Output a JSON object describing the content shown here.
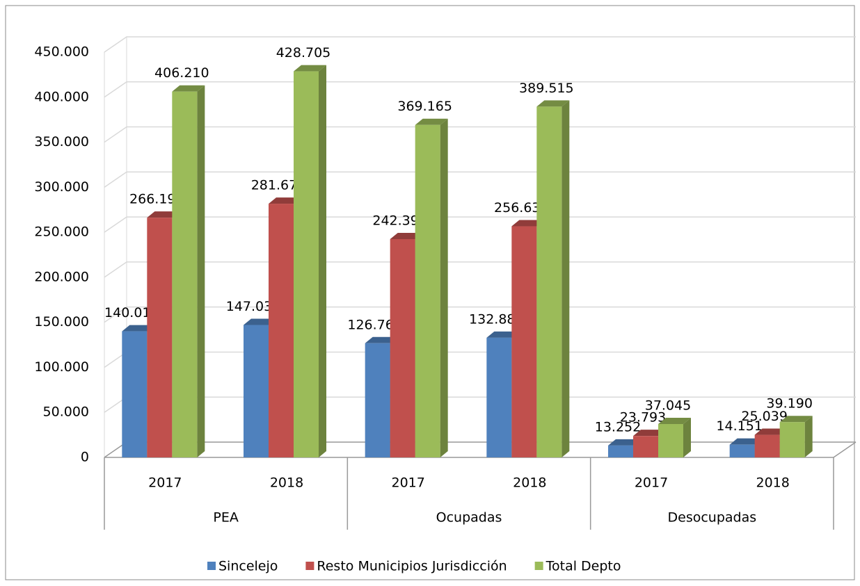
{
  "chart_data": {
    "type": "bar",
    "categories": [
      "2017",
      "2018",
      "2017",
      "2018",
      "2017",
      "2018"
    ],
    "groups": [
      "PEA",
      "Ocupadas",
      "Desocupadas"
    ],
    "series": [
      {
        "name": "Sincelejo",
        "color": "#4f81bd",
        "values": [
          140018,
          147035,
          126766,
          132883,
          13252,
          14151
        ],
        "value_labels": [
          "140.018",
          "147.035",
          "126.766",
          "132.883",
          "13.252",
          "14.151"
        ]
      },
      {
        "name": "Resto Municipios Jurisdicción",
        "color": "#c0504d",
        "values": [
          266192,
          281670,
          242399,
          256632,
          23793,
          25039
        ],
        "value_labels": [
          "266.192",
          "281.670",
          "242.399",
          "256.632",
          "23.793",
          "25.039"
        ]
      },
      {
        "name": "Total Depto",
        "color": "#9bbb59",
        "values": [
          406210,
          428705,
          369165,
          389515,
          37045,
          39190
        ],
        "value_labels": [
          "406.210",
          "428.705",
          "369.165",
          "389.515",
          "37.045",
          "39.190"
        ]
      }
    ],
    "ylim": [
      0,
      450000
    ],
    "yticks": [
      0,
      {
        "value": 50000,
        "label": "50.000"
      },
      {
        "value": 100000,
        "label": "100.000"
      },
      {
        "value": 150000,
        "label": "150.000"
      },
      {
        "value": 200000,
        "label": "200.000"
      },
      {
        "value": 250000,
        "label": "250.000"
      },
      {
        "value": 300000,
        "label": "300.000"
      },
      {
        "value": 350000,
        "label": "350.000"
      },
      {
        "value": 400000,
        "label": "400.000"
      },
      {
        "value": 450000,
        "label": "450.000"
      }
    ],
    "grid": true,
    "legend": "bottom"
  }
}
